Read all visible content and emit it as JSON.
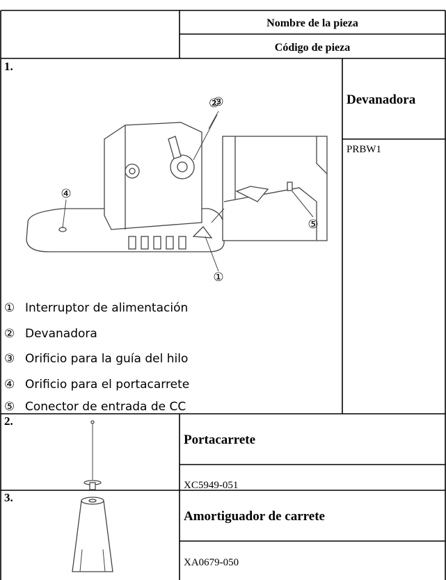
{
  "header": {
    "name_label": "Nombre de la pieza",
    "code_label": "Código de pieza"
  },
  "items": [
    {
      "number": "1.",
      "name": "Devanadora",
      "code": "PRBW1",
      "callouts": [
        {
          "marker": "①",
          "text": "Interruptor de alimentación"
        },
        {
          "marker": "②",
          "text": "Devanadora"
        },
        {
          "marker": "③",
          "text": "Orificio para la guía del hilo"
        },
        {
          "marker": "④",
          "text": "Orificio para el portacarrete"
        },
        {
          "marker": "⑤",
          "text": "Conector de entrada de CC"
        }
      ]
    },
    {
      "number": "2.",
      "name": "Portacarrete",
      "code": "XC5949-051"
    },
    {
      "number": "3.",
      "name": "Amortiguador de carrete",
      "code": "XA0679-050"
    }
  ]
}
